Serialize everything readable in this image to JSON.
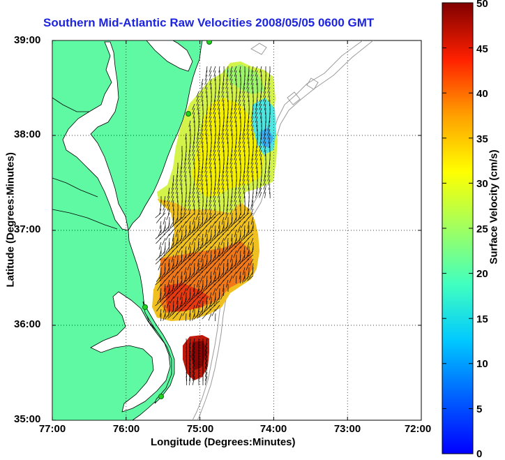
{
  "title": "Southern Mid-Atlantic Raw Velocities 2008/05/05 0600 GMT",
  "x_axis": {
    "label": "Longitude (Degrees:Minutes)",
    "ticks": [
      "77:00",
      "76:00",
      "75:00",
      "74:00",
      "73:00",
      "72:00"
    ],
    "range": [
      -77,
      -72
    ]
  },
  "y_axis": {
    "label": "Latitude (Degrees:Minutes)",
    "ticks": [
      "39:00",
      "38:00",
      "37:00",
      "36:00",
      "35:00"
    ],
    "range": [
      35,
      39
    ]
  },
  "colorbar": {
    "label": "Surface Velocity (cm/s)",
    "ticks": [
      "50",
      "45",
      "40",
      "35",
      "30",
      "25",
      "20",
      "15",
      "10",
      "5",
      "0"
    ],
    "range": [
      0,
      50
    ],
    "colormap": "jet"
  },
  "colors": {
    "land": "#5ff9a4",
    "title": "#1d24e0",
    "bathymetry": "#9a9a9a",
    "arrows": "#000000",
    "station": "#22d022"
  },
  "grid": "dotted"
}
